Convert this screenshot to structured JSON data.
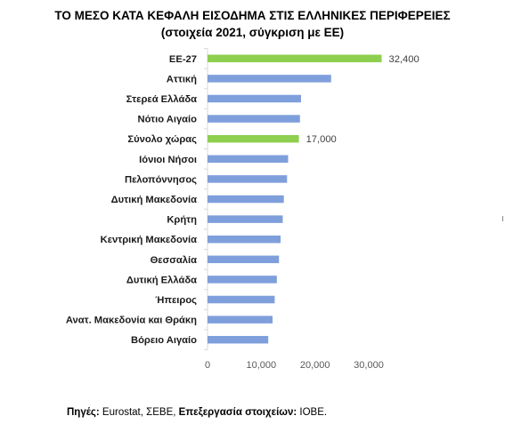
{
  "title": {
    "line1": "ΤΟ ΜΕΣΟ ΚΑΤΑ ΚΕΦΑΛΗ ΕΙΣΟΔΗΜΑ ΣΤΙΣ ΕΛΛΗΝΙΚΕΣ ΠΕΡΙΦΕΡΕΙΕΣ",
    "line2": "(στοιχεία 2021, σύγκριση με ΕΕ)"
  },
  "source": {
    "label1": "Πηγές:",
    "text1": " Eurostat, ΣΕΒΕ, ",
    "label2": "Επεξεργασία στοιχείων:",
    "text2": " ΙΟΒΕ."
  },
  "colors": {
    "bar": "#7f9fdc",
    "highlight": "#8ecf4f",
    "axis": "#d9d9d9"
  },
  "chart_data": {
    "type": "bar",
    "orientation": "horizontal",
    "title": "ΤΟ ΜΕΣΟ ΚΑΤΑ ΚΕΦΑΛΗ ΕΙΣΟΔΗΜΑ ΣΤΙΣ ΕΛΛΗΝΙΚΕΣ ΠΕΡΙΦΕΡΕΙΕΣ",
    "subtitle": "(στοιχεία 2021, σύγκριση με ΕΕ)",
    "categories": [
      "ΕΕ-27",
      "Αττική",
      "Στερεά Ελλάδα",
      "Νότιο Αιγαίο",
      "Σύνολο χώρας",
      "Ιόνιοι Νήσοι",
      "Πελοπόννησος",
      "Δυτική Μακεδονία",
      "Κρήτη",
      "Κεντρική Μακεδονία",
      "Θεσσαλία",
      "Δυτική Ελλάδα",
      "Ήπειρος",
      "Ανατ. Μακεδονία και Θράκη",
      "Βόρειο Αιγαίο"
    ],
    "values": [
      32400,
      23000,
      17400,
      17200,
      17000,
      15000,
      14800,
      14200,
      14000,
      13600,
      13300,
      12900,
      12500,
      12100,
      11300
    ],
    "highlighted": [
      "ΕΕ-27",
      "Σύνολο χώρας"
    ],
    "data_labels": [
      {
        "category": "ΕΕ-27",
        "text": "32,400"
      },
      {
        "category": "Σύνολο χώρας",
        "text": "17,000"
      }
    ],
    "xlim": [
      0,
      30000
    ],
    "xticks": [
      0,
      10000,
      20000,
      30000
    ],
    "xtick_labels": [
      "0",
      "10,000",
      "20,000",
      "30,000"
    ],
    "xlabel": "",
    "ylabel": "",
    "grid": false,
    "legend": "none"
  }
}
